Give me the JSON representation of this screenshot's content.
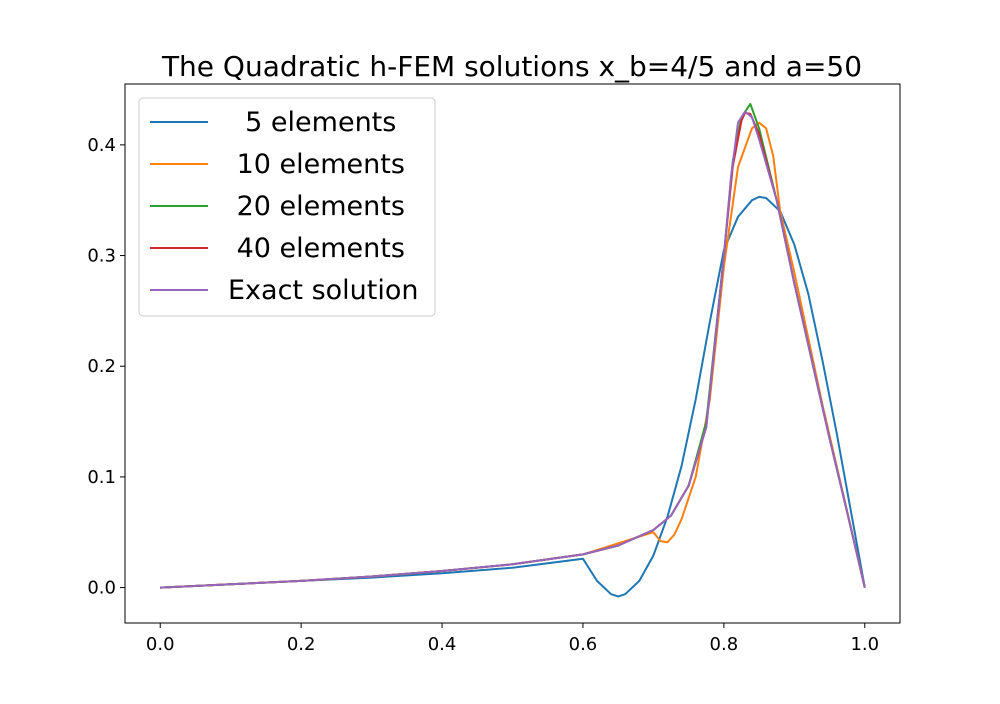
{
  "chart_data": {
    "type": "line",
    "title": "The Quadratic h-FEM solutions x_b=4/5 and a=50",
    "xlabel": "",
    "ylabel": "",
    "xlim": [
      -0.05,
      1.05
    ],
    "ylim": [
      -0.032,
      0.455
    ],
    "xticks": [
      0.0,
      0.2,
      0.4,
      0.6,
      0.8,
      1.0
    ],
    "xtick_labels": [
      "0.0",
      "0.2",
      "0.4",
      "0.6",
      "0.8",
      "1.0"
    ],
    "yticks": [
      0.0,
      0.1,
      0.2,
      0.3,
      0.4
    ],
    "ytick_labels": [
      "0.0",
      "0.1",
      "0.2",
      "0.3",
      "0.4"
    ],
    "grid": false,
    "legend_position": "upper-left",
    "series": [
      {
        "name": "  5 elements",
        "color": "#1f77b4",
        "x": [
          0.0,
          0.1,
          0.2,
          0.3,
          0.4,
          0.5,
          0.6,
          0.62,
          0.64,
          0.65,
          0.66,
          0.68,
          0.7,
          0.72,
          0.74,
          0.76,
          0.78,
          0.8,
          0.82,
          0.84,
          0.85,
          0.86,
          0.88,
          0.9,
          0.92,
          0.94,
          0.96,
          0.98,
          1.0
        ],
        "y": [
          0.0,
          0.003,
          0.006,
          0.009,
          0.013,
          0.018,
          0.026,
          0.006,
          -0.006,
          -0.008,
          -0.006,
          0.006,
          0.029,
          0.064,
          0.11,
          0.17,
          0.24,
          0.305,
          0.335,
          0.35,
          0.353,
          0.352,
          0.34,
          0.31,
          0.265,
          0.205,
          0.14,
          0.07,
          0.0
        ]
      },
      {
        "name": " 10 elements",
        "color": "#ff7f0e",
        "x": [
          0.0,
          0.1,
          0.2,
          0.3,
          0.4,
          0.5,
          0.6,
          0.7,
          0.71,
          0.72,
          0.73,
          0.74,
          0.76,
          0.78,
          0.8,
          0.82,
          0.84,
          0.85,
          0.86,
          0.87,
          0.88,
          0.9,
          0.92,
          0.94,
          0.96,
          0.98,
          1.0
        ],
        "y": [
          0.0,
          0.003,
          0.006,
          0.01,
          0.015,
          0.021,
          0.03,
          0.05,
          0.042,
          0.041,
          0.048,
          0.062,
          0.1,
          0.17,
          0.29,
          0.38,
          0.415,
          0.42,
          0.415,
          0.39,
          0.34,
          0.285,
          0.225,
          0.165,
          0.11,
          0.055,
          0.0
        ]
      },
      {
        "name": " 20 elements",
        "color": "#2ca02c",
        "x": [
          0.0,
          0.1,
          0.2,
          0.3,
          0.4,
          0.5,
          0.6,
          0.65,
          0.7,
          0.725,
          0.75,
          0.775,
          0.8,
          0.8125,
          0.825,
          0.8375,
          0.85,
          0.875,
          0.9,
          0.925,
          0.95,
          0.975,
          1.0
        ],
        "y": [
          0.0,
          0.003,
          0.006,
          0.01,
          0.015,
          0.021,
          0.03,
          0.038,
          0.052,
          0.065,
          0.092,
          0.15,
          0.3,
          0.385,
          0.425,
          0.437,
          0.415,
          0.35,
          0.275,
          0.205,
          0.135,
          0.068,
          0.0
        ]
      },
      {
        "name": " 40 elements",
        "color": "#d62728",
        "x": [
          0.0,
          0.1,
          0.2,
          0.3,
          0.4,
          0.5,
          0.6,
          0.65,
          0.7,
          0.725,
          0.75,
          0.775,
          0.8,
          0.8125,
          0.825,
          0.83,
          0.8375,
          0.85,
          0.875,
          0.9,
          0.925,
          0.95,
          0.975,
          1.0
        ],
        "y": [
          0.0,
          0.003,
          0.006,
          0.01,
          0.015,
          0.021,
          0.03,
          0.038,
          0.052,
          0.065,
          0.092,
          0.145,
          0.3,
          0.38,
          0.422,
          0.429,
          0.428,
          0.41,
          0.35,
          0.275,
          0.205,
          0.135,
          0.068,
          0.0
        ]
      },
      {
        "name": "Exact solution",
        "color": "#9467bd",
        "x": [
          0.0,
          0.1,
          0.2,
          0.3,
          0.4,
          0.5,
          0.6,
          0.65,
          0.7,
          0.725,
          0.75,
          0.775,
          0.8,
          0.81,
          0.82,
          0.83,
          0.84,
          0.85,
          0.875,
          0.9,
          0.925,
          0.95,
          0.975,
          1.0
        ],
        "y": [
          0.0,
          0.003,
          0.006,
          0.01,
          0.015,
          0.021,
          0.03,
          0.038,
          0.052,
          0.065,
          0.092,
          0.145,
          0.3,
          0.37,
          0.42,
          0.43,
          0.425,
          0.405,
          0.35,
          0.275,
          0.205,
          0.135,
          0.068,
          0.0
        ]
      }
    ]
  }
}
